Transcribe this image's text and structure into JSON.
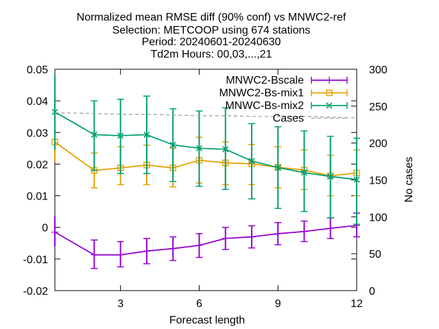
{
  "chart_data": {
    "type": "line",
    "title_lines": [
      "Normalized mean RMSE diff (90% conf) vs MNWC2-ref",
      "Selection: METCOOP using   674 stations",
      "Period: 20240601-20240630",
      "Td2m   Hours: 00,03,...,21"
    ],
    "xlabel": "Forecast length",
    "ylabel": "",
    "y2label": "No cases",
    "xlim": [
      0.5,
      12
    ],
    "ylim": [
      -0.02,
      0.05
    ],
    "y2lim": [
      0,
      300
    ],
    "x_ticks": [
      3,
      6,
      9,
      12
    ],
    "y_ticks": [
      -0.02,
      -0.01,
      0,
      0.01,
      0.02,
      0.03,
      0.04,
      0.05
    ],
    "y_tick_labels": [
      "-0.02",
      "-0.01",
      "0",
      "0.01",
      "0.02",
      "0.03",
      "0.04",
      "0.05"
    ],
    "y2_ticks": [
      0,
      50,
      100,
      150,
      200,
      250,
      300
    ],
    "grid": false,
    "legend_position": "top-right",
    "x": [
      0.5,
      2,
      3,
      4,
      5,
      6,
      7,
      8,
      9,
      10,
      11,
      12
    ],
    "series": [
      {
        "name": "MNWC2-Bscale",
        "color": "#9400d3",
        "marker": "plus",
        "axis": "y",
        "values": [
          -0.0015,
          -0.0087,
          -0.0087,
          -0.0075,
          -0.0067,
          -0.0057,
          -0.0035,
          -0.003,
          -0.002,
          -0.0013,
          -0.0003,
          0.0006
        ],
        "err_low": [
          -0.006,
          -0.013,
          -0.0125,
          -0.0115,
          -0.0105,
          -0.0095,
          -0.007,
          -0.0065,
          -0.0055,
          -0.0045,
          -0.0035,
          -0.003
        ],
        "err_high": [
          0.0035,
          -0.004,
          -0.0045,
          -0.0035,
          -0.003,
          -0.002,
          0.0,
          0.0005,
          0.0015,
          0.002,
          0.003,
          0.0045
        ]
      },
      {
        "name": "MNWC2-Bs-mix1",
        "color": "#e69f00",
        "marker": "square",
        "axis": "y",
        "values": [
          0.027,
          0.018,
          0.0188,
          0.0197,
          0.0188,
          0.0212,
          0.0204,
          0.0201,
          0.019,
          0.0181,
          0.0163,
          0.0172
        ],
        "err_low": [
          0.0205,
          0.0125,
          0.0135,
          0.0135,
          0.0128,
          0.014,
          0.0135,
          0.0135,
          0.0125,
          0.012,
          0.01,
          0.01
        ],
        "err_high": [
          0.0335,
          0.0235,
          0.0255,
          0.026,
          0.025,
          0.0285,
          0.027,
          0.0262,
          0.0255,
          0.0245,
          0.0228,
          0.0245
        ]
      },
      {
        "name": "MNWC-Bs-mix2",
        "color": "#009e73",
        "marker": "cross",
        "axis": "y",
        "values": [
          0.0365,
          0.0293,
          0.029,
          0.0293,
          0.0261,
          0.025,
          0.0247,
          0.021,
          0.0189,
          0.0173,
          0.0161,
          0.0151
        ],
        "err_low": [
          0.0245,
          0.018,
          0.017,
          0.017,
          0.0145,
          0.013,
          0.012,
          0.009,
          0.006,
          0.005,
          0.003,
          0.001
        ],
        "err_high": [
          0.048,
          0.04,
          0.0405,
          0.0415,
          0.0375,
          0.0368,
          0.0378,
          0.0328,
          0.0318,
          0.0305,
          0.0288,
          0.0282
        ]
      },
      {
        "name": "Cases",
        "color": "#a0a0a0",
        "marker": "none",
        "dashed": true,
        "axis": "y2",
        "values": [
          241,
          240,
          239,
          239,
          238,
          237,
          237,
          236,
          236,
          236,
          235,
          234
        ]
      }
    ]
  }
}
